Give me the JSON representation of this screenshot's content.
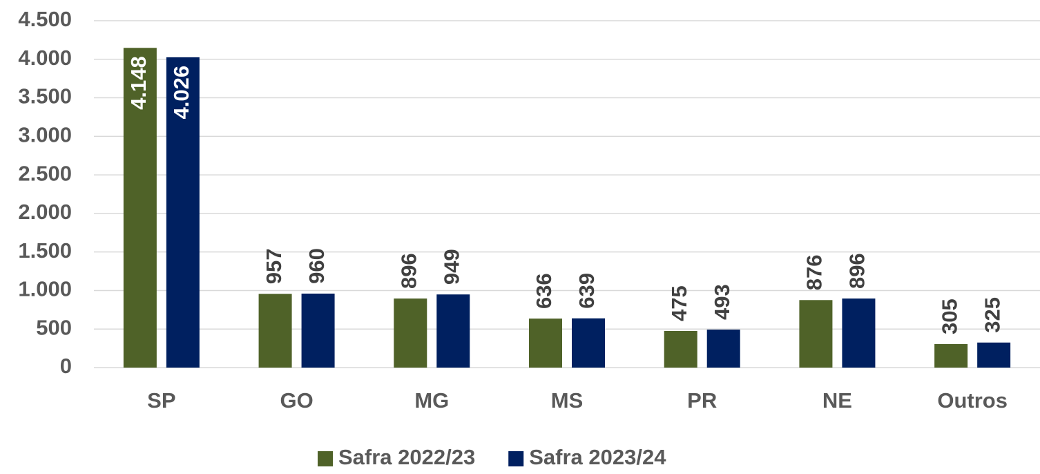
{
  "chart_data": {
    "type": "bar",
    "categories": [
      "SP",
      "GO",
      "MG",
      "MS",
      "PR",
      "NE",
      "Outros"
    ],
    "series": [
      {
        "name": "Safra 2022/23",
        "color": "#4f6228",
        "values": [
          4148,
          957,
          896,
          636,
          475,
          876,
          305
        ],
        "value_labels": [
          "4.148",
          "957",
          "896",
          "636",
          "475",
          "876",
          "305"
        ]
      },
      {
        "name": "Safra 2023/24",
        "color": "#002060",
        "values": [
          4026,
          960,
          949,
          639,
          493,
          896,
          325
        ],
        "value_labels": [
          "4.026",
          "960",
          "949",
          "639",
          "493",
          "896",
          "325"
        ]
      }
    ],
    "ylim": [
      0,
      4500
    ],
    "yticks": [
      0,
      500,
      {
        "value": 1000,
        "label": "1.000"
      },
      {
        "value": 1500,
        "label": "1.500"
      },
      {
        "value": 2000,
        "label": "2.000"
      },
      {
        "value": 2500,
        "label": "2.500"
      },
      {
        "value": 3000,
        "label": "3.000"
      },
      {
        "value": 3500,
        "label": "3.500"
      },
      {
        "value": 4000,
        "label": "4.000"
      },
      {
        "value": 4500,
        "label": "4.500"
      }
    ],
    "grid": true,
    "legend": "bottom"
  }
}
